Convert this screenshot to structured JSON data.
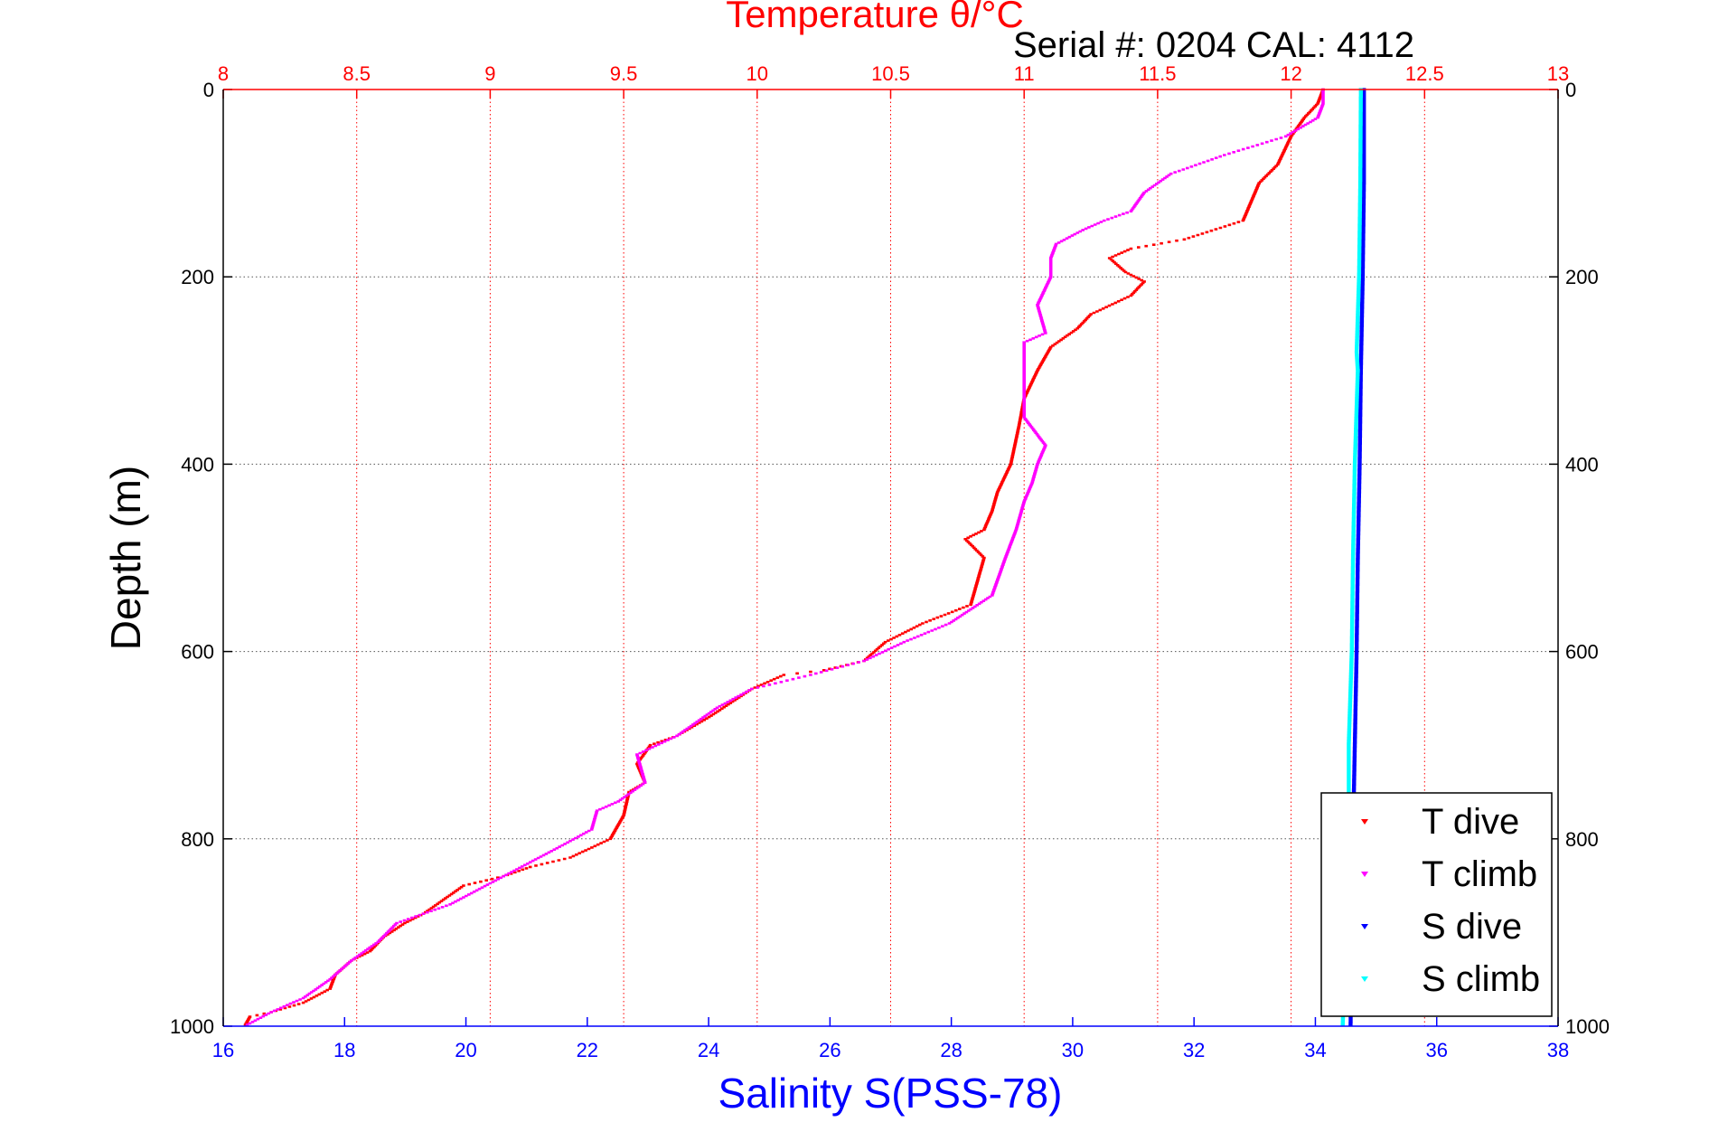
{
  "chart_data": {
    "type": "scatter",
    "title": "Temperature θ/°C",
    "subtitle": "Serial #: 0204  CAL: 4112",
    "ylabel": "Depth (m)",
    "xlabel": "Salinity S(PSS-78)",
    "top_axis": {
      "label": "Temperature θ/°C",
      "range": [
        8,
        13
      ],
      "ticks": [
        8,
        8.5,
        9,
        9.5,
        10,
        10.5,
        11,
        11.5,
        12,
        12.5,
        13
      ],
      "tick_labels": [
        "8",
        "8.5",
        "9",
        "9.5",
        "10",
        "10.5",
        "11",
        "11.5",
        "12",
        "12.5",
        "13"
      ]
    },
    "bottom_axis": {
      "label": "Salinity S(PSS-78)",
      "range": [
        16,
        38
      ],
      "ticks": [
        16,
        18,
        20,
        22,
        24,
        26,
        28,
        30,
        32,
        34,
        36,
        38
      ],
      "tick_labels": [
        "16",
        "18",
        "20",
        "22",
        "24",
        "26",
        "28",
        "30",
        "32",
        "34",
        "36",
        "38"
      ]
    },
    "y_axis": {
      "range": [
        0,
        1000
      ],
      "reversed": true,
      "ticks": [
        0,
        200,
        400,
        600,
        800,
        1000
      ],
      "tick_labels": [
        "0",
        "200",
        "400",
        "600",
        "800",
        "1000"
      ]
    },
    "grid": true,
    "legend_position": "bottom-right",
    "series": [
      {
        "name": "T dive",
        "axis": "temperature",
        "color": "#ff0000",
        "points": [
          [
            12.12,
            0
          ],
          [
            12.1,
            15
          ],
          [
            12.05,
            30
          ],
          [
            12.0,
            50
          ],
          [
            11.95,
            80
          ],
          [
            11.88,
            100
          ],
          [
            11.82,
            140
          ],
          [
            11.6,
            160
          ],
          [
            11.4,
            170
          ],
          [
            11.32,
            180
          ],
          [
            11.38,
            195
          ],
          [
            11.45,
            205
          ],
          [
            11.4,
            220
          ],
          [
            11.25,
            240
          ],
          [
            11.2,
            255
          ],
          [
            11.1,
            275
          ],
          [
            11.05,
            300
          ],
          [
            11.0,
            330
          ],
          [
            10.98,
            360
          ],
          [
            10.95,
            400
          ],
          [
            10.9,
            430
          ],
          [
            10.88,
            450
          ],
          [
            10.85,
            470
          ],
          [
            10.78,
            480
          ],
          [
            10.85,
            500
          ],
          [
            10.83,
            520
          ],
          [
            10.8,
            550
          ],
          [
            10.62,
            570
          ],
          [
            10.48,
            590
          ],
          [
            10.4,
            610
          ],
          [
            10.25,
            620
          ],
          [
            10.1,
            625
          ],
          [
            9.98,
            640
          ],
          [
            9.82,
            670
          ],
          [
            9.7,
            690
          ],
          [
            9.6,
            700
          ],
          [
            9.55,
            720
          ],
          [
            9.58,
            740
          ],
          [
            9.52,
            750
          ],
          [
            9.5,
            775
          ],
          [
            9.45,
            800
          ],
          [
            9.3,
            820
          ],
          [
            9.15,
            830
          ],
          [
            9.05,
            840
          ],
          [
            8.9,
            850
          ],
          [
            8.75,
            880
          ],
          [
            8.68,
            890
          ],
          [
            8.6,
            905
          ],
          [
            8.55,
            920
          ],
          [
            8.48,
            930
          ],
          [
            8.42,
            945
          ],
          [
            8.4,
            960
          ],
          [
            8.3,
            975
          ],
          [
            8.18,
            985
          ],
          [
            8.1,
            990
          ],
          [
            8.08,
            1000
          ]
        ]
      },
      {
        "name": "T climb",
        "axis": "temperature",
        "color": "#ff00ff",
        "points": [
          [
            12.12,
            0
          ],
          [
            12.12,
            15
          ],
          [
            12.1,
            30
          ],
          [
            11.98,
            50
          ],
          [
            11.75,
            70
          ],
          [
            11.55,
            90
          ],
          [
            11.45,
            110
          ],
          [
            11.4,
            130
          ],
          [
            11.3,
            140
          ],
          [
            11.22,
            150
          ],
          [
            11.12,
            165
          ],
          [
            11.1,
            180
          ],
          [
            11.1,
            200
          ],
          [
            11.05,
            230
          ],
          [
            11.08,
            260
          ],
          [
            11.0,
            270
          ],
          [
            11.0,
            300
          ],
          [
            11.0,
            330
          ],
          [
            11.0,
            350
          ],
          [
            11.08,
            380
          ],
          [
            11.05,
            400
          ],
          [
            11.03,
            420
          ],
          [
            11.0,
            440
          ],
          [
            10.97,
            470
          ],
          [
            10.93,
            500
          ],
          [
            10.88,
            540
          ],
          [
            10.72,
            570
          ],
          [
            10.55,
            590
          ],
          [
            10.4,
            610
          ],
          [
            10.2,
            625
          ],
          [
            9.98,
            640
          ],
          [
            9.85,
            660
          ],
          [
            9.7,
            690
          ],
          [
            9.55,
            710
          ],
          [
            9.58,
            740
          ],
          [
            9.48,
            760
          ],
          [
            9.4,
            770
          ],
          [
            9.38,
            790
          ],
          [
            9.25,
            810
          ],
          [
            9.05,
            840
          ],
          [
            8.85,
            870
          ],
          [
            8.75,
            880
          ],
          [
            8.65,
            890
          ],
          [
            8.58,
            910
          ],
          [
            8.48,
            930
          ],
          [
            8.4,
            950
          ],
          [
            8.3,
            970
          ],
          [
            8.18,
            985
          ],
          [
            8.08,
            1000
          ]
        ]
      },
      {
        "name": "S dive",
        "axis": "salinity",
        "color": "#0000ff",
        "points": [
          [
            34.8,
            0
          ],
          [
            34.8,
            100
          ],
          [
            34.78,
            200
          ],
          [
            34.75,
            300
          ],
          [
            34.73,
            400
          ],
          [
            34.7,
            500
          ],
          [
            34.68,
            600
          ],
          [
            34.65,
            700
          ],
          [
            34.62,
            800
          ],
          [
            34.6,
            900
          ],
          [
            34.58,
            1000
          ]
        ]
      },
      {
        "name": "S climb",
        "axis": "salinity",
        "color": "#00ffff",
        "points": [
          [
            34.75,
            0
          ],
          [
            34.74,
            100
          ],
          [
            34.72,
            200
          ],
          [
            34.68,
            280
          ],
          [
            34.7,
            300
          ],
          [
            34.65,
            400
          ],
          [
            34.62,
            500
          ],
          [
            34.6,
            600
          ],
          [
            34.55,
            700
          ],
          [
            34.55,
            800
          ],
          [
            34.5,
            900
          ],
          [
            34.45,
            1000
          ]
        ]
      }
    ]
  }
}
